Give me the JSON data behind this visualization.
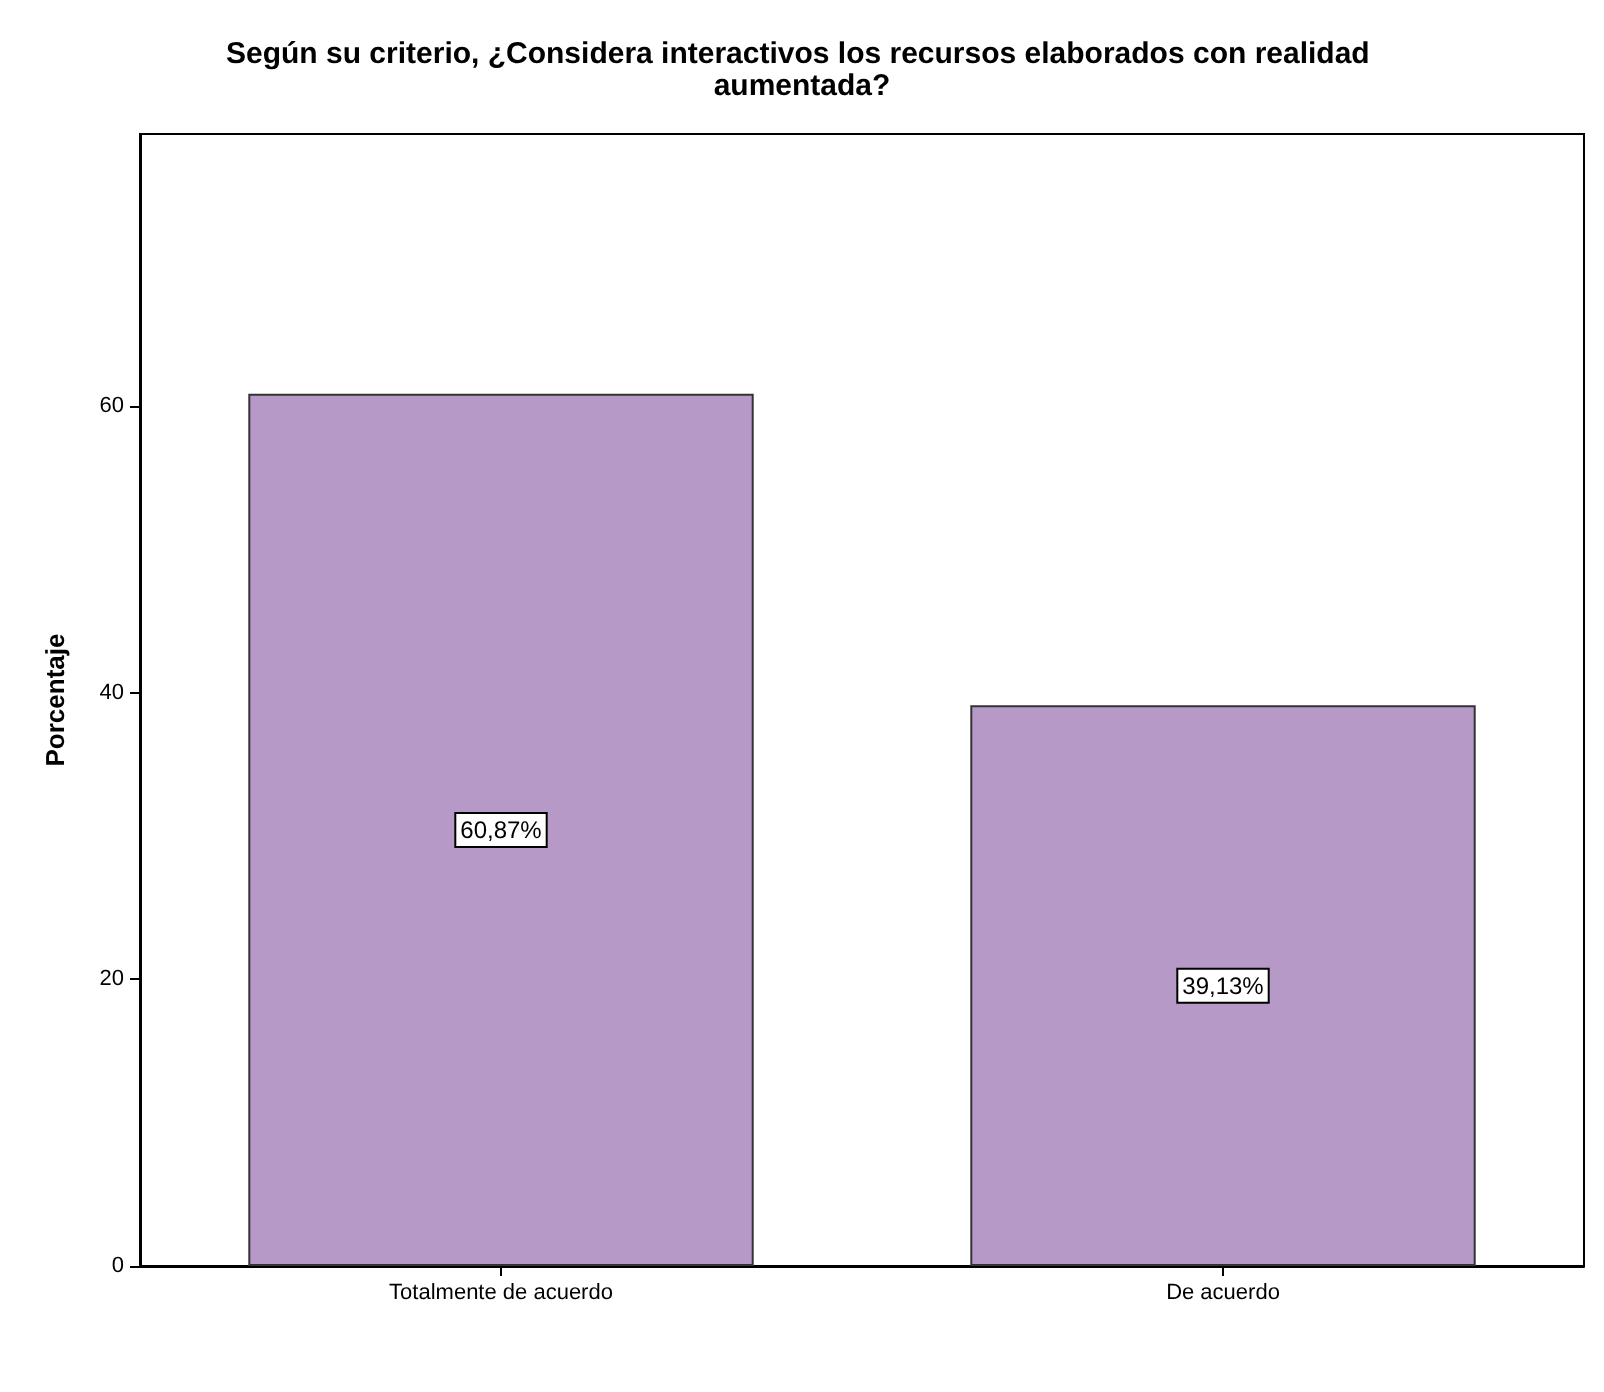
{
  "chart_data": {
    "type": "bar",
    "title": "Según su criterio, ¿Considera interactivos los recursos elaborados con realidad aumentada?",
    "ylabel": "Porcentaje",
    "categories": [
      "Totalmente de acuerdo",
      "De acuerdo"
    ],
    "values": [
      60.87,
      39.13
    ],
    "value_labels": [
      "60,87%",
      "39,13%"
    ],
    "color": "#b799c8",
    "ylim": [
      0,
      79
    ],
    "yticks": [
      0,
      20,
      40,
      60
    ],
    "grid": false
  }
}
